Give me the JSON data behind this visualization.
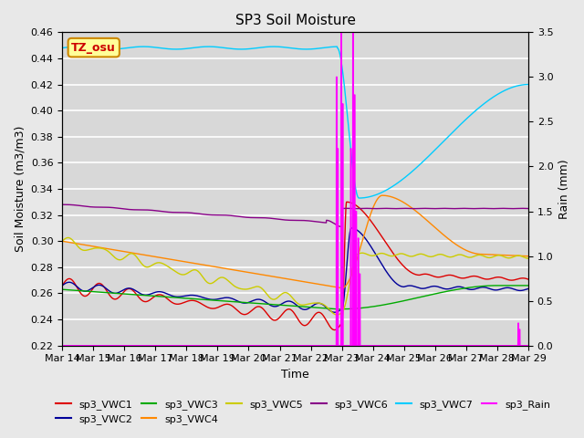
{
  "title": "SP3 Soil Moisture",
  "ylabel_left": "Soil Moisture (m3/m3)",
  "ylabel_right": "Rain (mm)",
  "xlabel": "Time",
  "ylim_left": [
    0.22,
    0.46
  ],
  "ylim_right": [
    0.0,
    3.5
  ],
  "plot_bg": "#d8d8d8",
  "fig_bg": "#e8e8e8",
  "grid_color": "#ffffff",
  "annotation_text": "TZ_osu",
  "annotation_bg": "#ffff99",
  "annotation_edge": "#cc8800",
  "annotation_text_color": "#cc0000",
  "series_colors": {
    "sp3_VWC1": "#dd0000",
    "sp3_VWC2": "#000099",
    "sp3_VWC3": "#00aa00",
    "sp3_VWC4": "#ff8800",
    "sp3_VWC5": "#cccc00",
    "sp3_VWC6": "#880088",
    "sp3_VWC7": "#00ccff",
    "sp3_Rain": "#ff00ff"
  },
  "tick_dates": [
    "Mar 14",
    "Mar 15",
    "Mar 16",
    "Mar 17",
    "Mar 18",
    "Mar 19",
    "Mar 20",
    "Mar 21",
    "Mar 22",
    "Mar 23",
    "Mar 24",
    "Mar 25",
    "Mar 26",
    "Mar 27",
    "Mar 28",
    "Mar 29"
  ]
}
